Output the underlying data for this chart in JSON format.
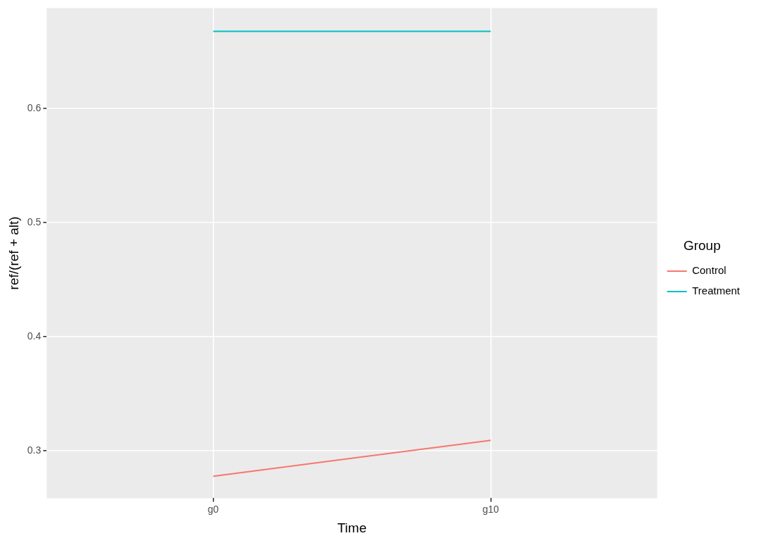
{
  "chart_data": {
    "type": "line",
    "xlabel": "Time",
    "ylabel": "ref/(ref + alt)",
    "legend_title": "Group",
    "categories": [
      "g0",
      "g10"
    ],
    "series": [
      {
        "name": "Control",
        "color": "#f8766d",
        "values": [
          0.2778,
          0.3093
        ]
      },
      {
        "name": "Treatment",
        "color": "#00bfc4",
        "values": [
          0.6673,
          0.6673
        ]
      }
    ],
    "ylim": [
      0.2586,
      0.6877
    ],
    "yticks": [
      0.3,
      0.4,
      0.5,
      0.6
    ],
    "grid": true,
    "legend": "right",
    "marker": "none",
    "line_style": "solid"
  }
}
